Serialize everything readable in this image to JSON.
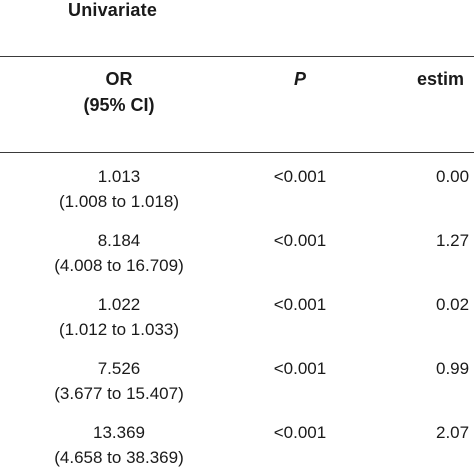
{
  "section": {
    "title": "Univariate"
  },
  "columns": {
    "or_line1": "OR",
    "or_line2": "(95% CI)",
    "p": "P",
    "estimate": "estim"
  },
  "rows": [
    {
      "or": "1.013",
      "ci": "(1.008 to 1.018)",
      "p": "<0.001",
      "estimate": "0.00"
    },
    {
      "or": "8.184",
      "ci": "(4.008 to 16.709)",
      "p": "<0.001",
      "estimate": "1.27"
    },
    {
      "or": "1.022",
      "ci": "(1.012 to 1.033)",
      "p": "<0.001",
      "estimate": "0.02"
    },
    {
      "or": "7.526",
      "ci": "(3.677 to 15.407)",
      "p": "<0.001",
      "estimate": "0.99"
    },
    {
      "or": "13.369",
      "ci": "(4.658 to 38.369)",
      "p": "<0.001",
      "estimate": "2.07"
    }
  ]
}
